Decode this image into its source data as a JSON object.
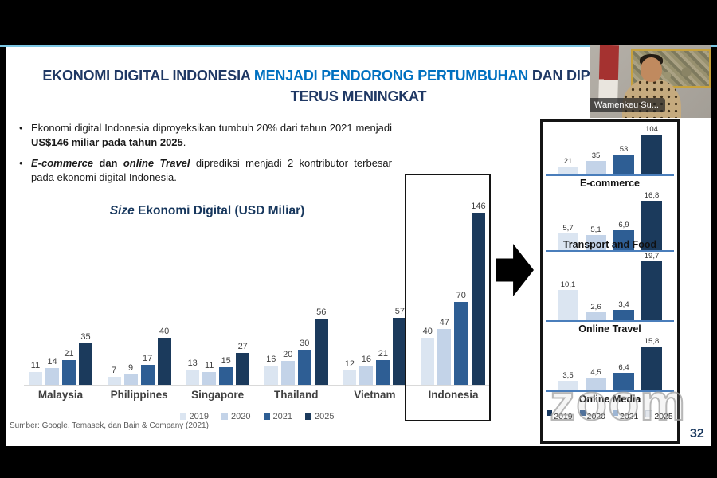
{
  "meeting": {
    "participant_name": "Wamenkeu Su...",
    "watermark": "zoom",
    "page_number": "32"
  },
  "slide": {
    "title": {
      "part1": "EKONOMI DIGITAL INDONESIA ",
      "highlight": "MENJADI PENDORONG PERTUMBUHAN",
      "part2": " DAN DIPERKIRAKAN",
      "line2": "TERUS MENINGKAT",
      "base_color": "#1f3864",
      "highlight_color": "#0070c0"
    },
    "bullets": {
      "b1": {
        "text": "Ekonomi digital Indonesia diproyeksikan tumbuh 20% dari tahun 2021 menjadi ",
        "bold": "US$146 miliar pada tahun 2025",
        "tail": "."
      },
      "b2": {
        "term1": "E-commerce",
        "mid": " dan ",
        "term2": "online Travel",
        "tail": " diprediksi menjadi 2 kontributor terbesar pada ekonomi digital Indonesia."
      }
    },
    "chart_title": {
      "italic": "Size",
      "rest": " Ekonomi Digital (USD Miliar)"
    },
    "source": "Sumber: Google, Temasek, dan Bain & Company (2021)"
  },
  "right_panel": {
    "legend": {
      "years": [
        "2019",
        "2020",
        "2021",
        "2025"
      ],
      "colors": [
        "#17375e",
        "#365f91",
        "#95b3d7",
        "#e8edf4"
      ]
    }
  },
  "chart_data": [
    {
      "type": "bar",
      "title": "Size Ekonomi Digital (USD Miliar)",
      "categories": [
        "Malaysia",
        "Philippines",
        "Singapore",
        "Thailand",
        "Vietnam",
        "Indonesia"
      ],
      "series": [
        {
          "name": "2019",
          "color": "#dbe5f1",
          "values": [
            11,
            7,
            13,
            16,
            12,
            40
          ]
        },
        {
          "name": "2020",
          "color": "#c3d3e8",
          "values": [
            14,
            9,
            11,
            20,
            16,
            47
          ]
        },
        {
          "name": "2021",
          "color": "#2e5e94",
          "values": [
            21,
            17,
            15,
            30,
            21,
            70
          ]
        },
        {
          "name": "2025",
          "color": "#1b3a5c",
          "values": [
            35,
            40,
            27,
            56,
            57,
            146
          ]
        }
      ],
      "highlight_category": "Indonesia",
      "legend_position": "bottom",
      "ylim": [
        0,
        150
      ]
    },
    {
      "type": "bar",
      "title": "E-commerce",
      "categories": [
        "2019",
        "2020",
        "2021",
        "2025"
      ],
      "values": [
        21,
        35,
        53,
        104
      ],
      "labels": [
        "21",
        "35",
        "53",
        "104"
      ]
    },
    {
      "type": "bar",
      "title": "Transport and Food",
      "categories": [
        "2019",
        "2020",
        "2021",
        "2025"
      ],
      "values": [
        5.7,
        5.1,
        6.9,
        16.8
      ],
      "labels": [
        "5,7",
        "5,1",
        "6,9",
        "16,8"
      ]
    },
    {
      "type": "bar",
      "title": "Online Travel",
      "categories": [
        "2019",
        "2020",
        "2021",
        "2025"
      ],
      "values": [
        10.1,
        2.6,
        3.4,
        19.7
      ],
      "labels": [
        "10,1",
        "2,6",
        "3,4",
        "19,7"
      ]
    },
    {
      "type": "bar",
      "title": "Online Media",
      "categories": [
        "2019",
        "2020",
        "2021",
        "2025"
      ],
      "values": [
        3.5,
        4.5,
        6.4,
        15.8
      ],
      "labels": [
        "3,5",
        "4,5",
        "6,4",
        "15,8"
      ]
    }
  ]
}
